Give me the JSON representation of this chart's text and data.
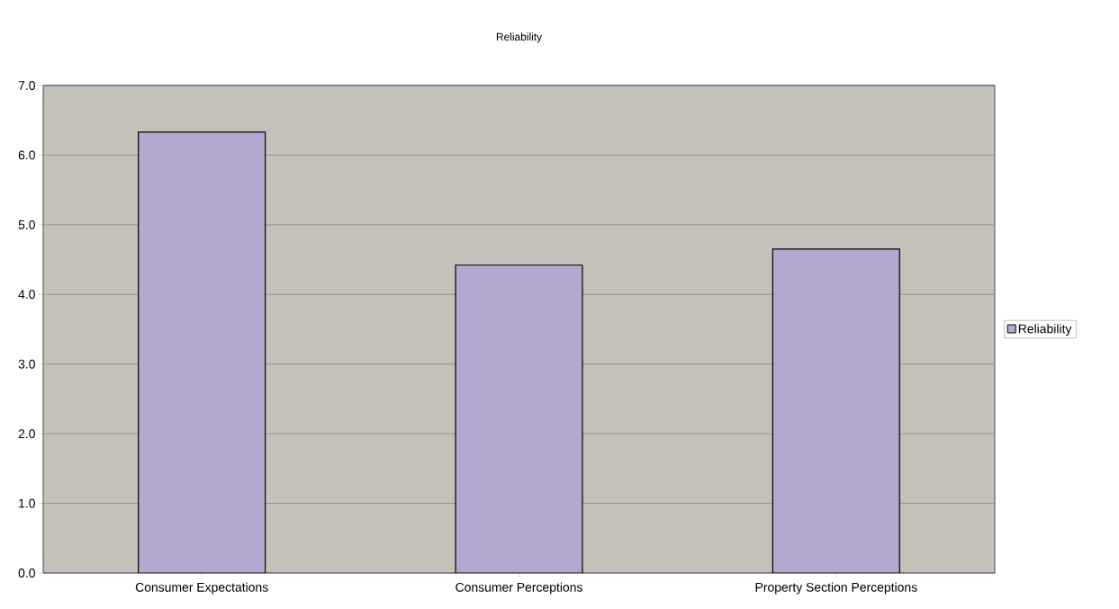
{
  "chart_data": {
    "type": "bar",
    "title": "Reliability",
    "categories": [
      "Consumer Expectations",
      "Consumer Perceptions",
      "Property Section Perceptions"
    ],
    "series": [
      {
        "name": "Reliability",
        "color": "#b3a9d0",
        "values": [
          6.33,
          4.42,
          4.65
        ]
      }
    ],
    "ylim": [
      0,
      7
    ],
    "yticks": [
      {
        "value": 0,
        "label": "0.0"
      },
      {
        "value": 1,
        "label": "1.0"
      },
      {
        "value": 2,
        "label": "2.0"
      },
      {
        "value": 3,
        "label": "3.0"
      },
      {
        "value": 4,
        "label": "4.0"
      },
      {
        "value": 5,
        "label": "5.0"
      },
      {
        "value": 6,
        "label": "6.0"
      },
      {
        "value": 7,
        "label": "7.0"
      }
    ],
    "grid": "y",
    "legend": "right"
  }
}
